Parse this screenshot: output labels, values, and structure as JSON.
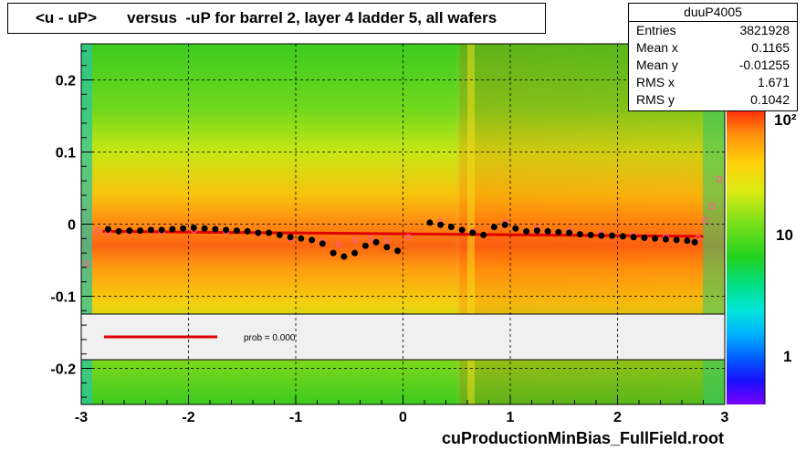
{
  "chart_data": {
    "type": "heatmap",
    "title": "<u - uP>       versus  -uP for barrel 2, layer 4 ladder 5, all wafers",
    "xlim": [
      -3,
      3
    ],
    "ylim": [
      -0.25,
      0.25
    ],
    "x_ticks": [
      "-3",
      "-2",
      "-1",
      "0",
      "1",
      "2",
      "3"
    ],
    "y_ticks": [
      "0.2",
      "0.1",
      "0",
      "-0.1",
      "-0.2"
    ],
    "colorbar_ticks": [
      "1",
      "10",
      "10²"
    ],
    "grid": true,
    "colorscale": "log",
    "stats": {
      "name": "duuP4005",
      "rows": [
        {
          "label": "Entries",
          "value": "3821928"
        },
        {
          "label": "Mean x",
          "value": "0.1165"
        },
        {
          "label": "Mean y",
          "value": "-0.01255"
        },
        {
          "label": "RMS x",
          "value": "1.671"
        },
        {
          "label": "RMS y",
          "value": "0.1042"
        }
      ]
    },
    "legend": {
      "fit_label": "prob = 0.000",
      "placement": "lower-middle"
    },
    "fit_line": {
      "color": "#e00000",
      "x": [
        -2.8,
        2.8
      ],
      "y": [
        -0.01,
        -0.017
      ]
    },
    "profile_black": [
      {
        "x": -2.75,
        "y": -0.007
      },
      {
        "x": -2.65,
        "y": -0.01
      },
      {
        "x": -2.55,
        "y": -0.009
      },
      {
        "x": -2.45,
        "y": -0.009
      },
      {
        "x": -2.35,
        "y": -0.008
      },
      {
        "x": -2.25,
        "y": -0.008
      },
      {
        "x": -2.15,
        "y": -0.007
      },
      {
        "x": -2.05,
        "y": -0.006
      },
      {
        "x": -1.95,
        "y": -0.005
      },
      {
        "x": -1.85,
        "y": -0.006
      },
      {
        "x": -1.75,
        "y": -0.007
      },
      {
        "x": -1.65,
        "y": -0.008
      },
      {
        "x": -1.55,
        "y": -0.009
      },
      {
        "x": -1.45,
        "y": -0.01
      },
      {
        "x": -1.35,
        "y": -0.012
      },
      {
        "x": -1.25,
        "y": -0.012
      },
      {
        "x": -1.15,
        "y": -0.015
      },
      {
        "x": -1.05,
        "y": -0.018
      },
      {
        "x": -0.95,
        "y": -0.02
      },
      {
        "x": -0.85,
        "y": -0.022
      },
      {
        "x": -0.75,
        "y": -0.027
      },
      {
        "x": -0.65,
        "y": -0.04
      },
      {
        "x": -0.55,
        "y": -0.045
      },
      {
        "x": -0.45,
        "y": -0.04
      },
      {
        "x": -0.35,
        "y": -0.03
      },
      {
        "x": -0.25,
        "y": -0.025
      },
      {
        "x": -0.15,
        "y": -0.032
      },
      {
        "x": -0.05,
        "y": -0.037
      },
      {
        "x": 0.25,
        "y": 0.002
      },
      {
        "x": 0.35,
        "y": -0.001
      },
      {
        "x": 0.45,
        "y": -0.004
      },
      {
        "x": 0.55,
        "y": -0.008
      },
      {
        "x": 0.65,
        "y": -0.012
      },
      {
        "x": 0.75,
        "y": -0.015
      },
      {
        "x": 0.85,
        "y": -0.004
      },
      {
        "x": 0.95,
        "y": -0.001
      },
      {
        "x": 1.05,
        "y": -0.006
      },
      {
        "x": 1.15,
        "y": -0.01
      },
      {
        "x": 1.25,
        "y": -0.009
      },
      {
        "x": 1.35,
        "y": -0.01
      },
      {
        "x": 1.45,
        "y": -0.011
      },
      {
        "x": 1.55,
        "y": -0.012
      },
      {
        "x": 1.65,
        "y": -0.014
      },
      {
        "x": 1.75,
        "y": -0.015
      },
      {
        "x": 1.85,
        "y": -0.016
      },
      {
        "x": 1.95,
        "y": -0.016
      },
      {
        "x": 2.05,
        "y": -0.017
      },
      {
        "x": 2.15,
        "y": -0.018
      },
      {
        "x": 2.25,
        "y": -0.019
      },
      {
        "x": 2.35,
        "y": -0.02
      },
      {
        "x": 2.45,
        "y": -0.021
      },
      {
        "x": 2.55,
        "y": -0.022
      },
      {
        "x": 2.65,
        "y": -0.023
      },
      {
        "x": 2.72,
        "y": -0.025
      }
    ],
    "profile_pink": [
      {
        "x": -2.95,
        "y": -0.055
      },
      {
        "x": -2.85,
        "y": -0.01
      },
      {
        "x": -2.75,
        "y": -0.012
      },
      {
        "x": -2.55,
        "y": -0.011
      },
      {
        "x": -2.25,
        "y": -0.01
      },
      {
        "x": -1.95,
        "y": -0.008
      },
      {
        "x": -1.65,
        "y": -0.01
      },
      {
        "x": -1.35,
        "y": -0.013
      },
      {
        "x": -1.05,
        "y": -0.02
      },
      {
        "x": -0.75,
        "y": -0.025
      },
      {
        "x": -0.6,
        "y": -0.028
      },
      {
        "x": -0.45,
        "y": -0.022
      },
      {
        "x": -0.3,
        "y": -0.02
      },
      {
        "x": -0.15,
        "y": -0.022
      },
      {
        "x": 0.05,
        "y": -0.018
      },
      {
        "x": 0.35,
        "y": 0.003
      },
      {
        "x": 0.65,
        "y": -0.01
      },
      {
        "x": 0.95,
        "y": 0.002
      },
      {
        "x": 1.25,
        "y": -0.006
      },
      {
        "x": 1.55,
        "y": -0.01
      },
      {
        "x": 1.85,
        "y": -0.013
      },
      {
        "x": 2.15,
        "y": -0.015
      },
      {
        "x": 2.45,
        "y": -0.018
      },
      {
        "x": 2.75,
        "y": -0.02
      },
      {
        "x": 2.82,
        "y": 0.005
      },
      {
        "x": 2.88,
        "y": 0.025
      },
      {
        "x": 2.95,
        "y": 0.062
      }
    ]
  },
  "footer_text": "cuProductionMinBias_FullField.root"
}
